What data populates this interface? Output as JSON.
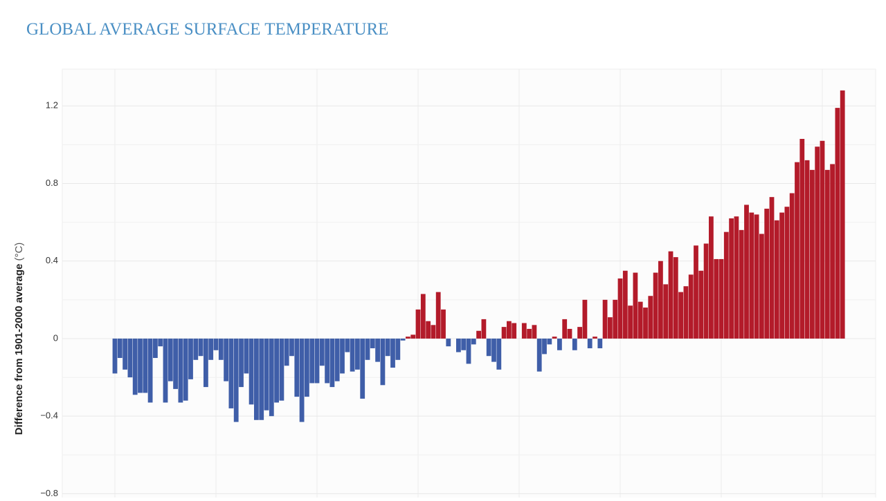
{
  "chart_data": {
    "type": "bar",
    "title": "GLOBAL AVERAGE SURFACE TEMPERATURE",
    "y_label": "Difference from 1901-2000 average",
    "y_unit": "(°C)",
    "categories": [
      null,
      null,
      null,
      null,
      null,
      null,
      null,
      null,
      null,
      null,
      null,
      null,
      null,
      null,
      null,
      null,
      null,
      null,
      null,
      null,
      null,
      null,
      null,
      null,
      null,
      null,
      null,
      null,
      null,
      null,
      null,
      null,
      null,
      null,
      null,
      null,
      null,
      null,
      null,
      null,
      null,
      null,
      null,
      null,
      null,
      null,
      null,
      null,
      null,
      null,
      null,
      null,
      null,
      null,
      null,
      null,
      null,
      null,
      null,
      null,
      null,
      null,
      null,
      null,
      null,
      null,
      null,
      null,
      null,
      null,
      null,
      null,
      null,
      null,
      null,
      null,
      null,
      null,
      null,
      null,
      null,
      null,
      null,
      null,
      null,
      null,
      null,
      null,
      null,
      null,
      null,
      null,
      null,
      null,
      null,
      null,
      null,
      null,
      null,
      null,
      null,
      null,
      null,
      null,
      null,
      null,
      null,
      null,
      null,
      null,
      null,
      null,
      null,
      null,
      null,
      null,
      null,
      null,
      null,
      null,
      null,
      null,
      null,
      null,
      null,
      null,
      null,
      null,
      null,
      null,
      null,
      null,
      null,
      null,
      null,
      null,
      null,
      null,
      null,
      null,
      null,
      null,
      null,
      null,
      null
    ],
    "values": [
      -0.18,
      -0.1,
      -0.16,
      -0.2,
      -0.29,
      -0.28,
      -0.28,
      -0.33,
      -0.1,
      -0.04,
      -0.33,
      -0.22,
      -0.26,
      -0.33,
      -0.32,
      -0.21,
      -0.11,
      -0.09,
      -0.25,
      -0.11,
      -0.06,
      -0.11,
      -0.22,
      -0.36,
      -0.43,
      -0.25,
      -0.18,
      -0.34,
      -0.42,
      -0.42,
      -0.37,
      -0.4,
      -0.33,
      -0.32,
      -0.14,
      -0.09,
      -0.3,
      -0.43,
      -0.3,
      -0.23,
      -0.23,
      -0.14,
      -0.23,
      -0.25,
      -0.22,
      -0.18,
      -0.07,
      -0.17,
      -0.16,
      -0.31,
      -0.11,
      -0.05,
      -0.12,
      -0.24,
      -0.09,
      -0.15,
      -0.11,
      -0.01,
      0.01,
      0.02,
      0.15,
      0.23,
      0.09,
      0.07,
      0.24,
      0.15,
      -0.04,
      0.0,
      -0.07,
      -0.06,
      -0.13,
      -0.03,
      0.04,
      0.1,
      -0.09,
      -0.12,
      -0.16,
      0.06,
      0.09,
      0.08,
      0.0,
      0.08,
      0.05,
      0.07,
      -0.17,
      -0.08,
      -0.03,
      0.01,
      -0.06,
      0.1,
      0.05,
      -0.06,
      0.06,
      0.2,
      -0.05,
      0.01,
      -0.05,
      0.2,
      0.11,
      0.2,
      0.31,
      0.35,
      0.17,
      0.34,
      0.19,
      0.16,
      0.22,
      0.34,
      0.4,
      0.28,
      0.45,
      0.42,
      0.24,
      0.27,
      0.33,
      0.48,
      0.35,
      0.49,
      0.63,
      0.41,
      0.41,
      0.55,
      0.62,
      0.63,
      0.56,
      0.69,
      0.65,
      0.64,
      0.54,
      0.67,
      0.73,
      0.61,
      0.65,
      0.68,
      0.75,
      0.91,
      1.03,
      0.92,
      0.87,
      0.99,
      1.02,
      0.87,
      0.9,
      1.19,
      1.28
    ],
    "positive_color": "#b31b2a",
    "negative_color": "#3f5ea8",
    "ylim": [
      -0.82,
      1.39
    ],
    "yticks": [
      {
        "value": -0.8,
        "label": "−0.8"
      },
      {
        "value": -0.4,
        "label": "−0.4"
      },
      0,
      0.4,
      0.8,
      1.2
    ],
    "grid": true
  }
}
